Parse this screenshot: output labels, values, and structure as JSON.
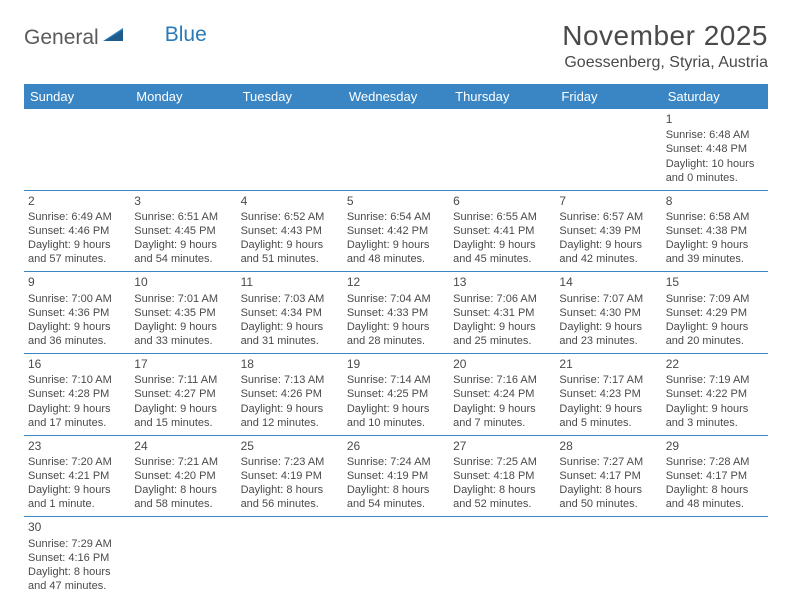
{
  "logo": {
    "text1": "General",
    "text2": "Blue"
  },
  "title": "November 2025",
  "location": "Goessenberg, Styria, Austria",
  "colors": {
    "header_bg": "#3a86c4",
    "border": "#3a86c4",
    "text": "#4a4a4a",
    "logo_blue": "#2a7ab8"
  },
  "day_headers": [
    "Sunday",
    "Monday",
    "Tuesday",
    "Wednesday",
    "Thursday",
    "Friday",
    "Saturday"
  ],
  "weeks": [
    [
      null,
      null,
      null,
      null,
      null,
      null,
      {
        "d": "1",
        "sr": "Sunrise: 6:48 AM",
        "ss": "Sunset: 4:48 PM",
        "dl": "Daylight: 10 hours and 0 minutes."
      }
    ],
    [
      {
        "d": "2",
        "sr": "Sunrise: 6:49 AM",
        "ss": "Sunset: 4:46 PM",
        "dl": "Daylight: 9 hours and 57 minutes."
      },
      {
        "d": "3",
        "sr": "Sunrise: 6:51 AM",
        "ss": "Sunset: 4:45 PM",
        "dl": "Daylight: 9 hours and 54 minutes."
      },
      {
        "d": "4",
        "sr": "Sunrise: 6:52 AM",
        "ss": "Sunset: 4:43 PM",
        "dl": "Daylight: 9 hours and 51 minutes."
      },
      {
        "d": "5",
        "sr": "Sunrise: 6:54 AM",
        "ss": "Sunset: 4:42 PM",
        "dl": "Daylight: 9 hours and 48 minutes."
      },
      {
        "d": "6",
        "sr": "Sunrise: 6:55 AM",
        "ss": "Sunset: 4:41 PM",
        "dl": "Daylight: 9 hours and 45 minutes."
      },
      {
        "d": "7",
        "sr": "Sunrise: 6:57 AM",
        "ss": "Sunset: 4:39 PM",
        "dl": "Daylight: 9 hours and 42 minutes."
      },
      {
        "d": "8",
        "sr": "Sunrise: 6:58 AM",
        "ss": "Sunset: 4:38 PM",
        "dl": "Daylight: 9 hours and 39 minutes."
      }
    ],
    [
      {
        "d": "9",
        "sr": "Sunrise: 7:00 AM",
        "ss": "Sunset: 4:36 PM",
        "dl": "Daylight: 9 hours and 36 minutes."
      },
      {
        "d": "10",
        "sr": "Sunrise: 7:01 AM",
        "ss": "Sunset: 4:35 PM",
        "dl": "Daylight: 9 hours and 33 minutes."
      },
      {
        "d": "11",
        "sr": "Sunrise: 7:03 AM",
        "ss": "Sunset: 4:34 PM",
        "dl": "Daylight: 9 hours and 31 minutes."
      },
      {
        "d": "12",
        "sr": "Sunrise: 7:04 AM",
        "ss": "Sunset: 4:33 PM",
        "dl": "Daylight: 9 hours and 28 minutes."
      },
      {
        "d": "13",
        "sr": "Sunrise: 7:06 AM",
        "ss": "Sunset: 4:31 PM",
        "dl": "Daylight: 9 hours and 25 minutes."
      },
      {
        "d": "14",
        "sr": "Sunrise: 7:07 AM",
        "ss": "Sunset: 4:30 PM",
        "dl": "Daylight: 9 hours and 23 minutes."
      },
      {
        "d": "15",
        "sr": "Sunrise: 7:09 AM",
        "ss": "Sunset: 4:29 PM",
        "dl": "Daylight: 9 hours and 20 minutes."
      }
    ],
    [
      {
        "d": "16",
        "sr": "Sunrise: 7:10 AM",
        "ss": "Sunset: 4:28 PM",
        "dl": "Daylight: 9 hours and 17 minutes."
      },
      {
        "d": "17",
        "sr": "Sunrise: 7:11 AM",
        "ss": "Sunset: 4:27 PM",
        "dl": "Daylight: 9 hours and 15 minutes."
      },
      {
        "d": "18",
        "sr": "Sunrise: 7:13 AM",
        "ss": "Sunset: 4:26 PM",
        "dl": "Daylight: 9 hours and 12 minutes."
      },
      {
        "d": "19",
        "sr": "Sunrise: 7:14 AM",
        "ss": "Sunset: 4:25 PM",
        "dl": "Daylight: 9 hours and 10 minutes."
      },
      {
        "d": "20",
        "sr": "Sunrise: 7:16 AM",
        "ss": "Sunset: 4:24 PM",
        "dl": "Daylight: 9 hours and 7 minutes."
      },
      {
        "d": "21",
        "sr": "Sunrise: 7:17 AM",
        "ss": "Sunset: 4:23 PM",
        "dl": "Daylight: 9 hours and 5 minutes."
      },
      {
        "d": "22",
        "sr": "Sunrise: 7:19 AM",
        "ss": "Sunset: 4:22 PM",
        "dl": "Daylight: 9 hours and 3 minutes."
      }
    ],
    [
      {
        "d": "23",
        "sr": "Sunrise: 7:20 AM",
        "ss": "Sunset: 4:21 PM",
        "dl": "Daylight: 9 hours and 1 minute."
      },
      {
        "d": "24",
        "sr": "Sunrise: 7:21 AM",
        "ss": "Sunset: 4:20 PM",
        "dl": "Daylight: 8 hours and 58 minutes."
      },
      {
        "d": "25",
        "sr": "Sunrise: 7:23 AM",
        "ss": "Sunset: 4:19 PM",
        "dl": "Daylight: 8 hours and 56 minutes."
      },
      {
        "d": "26",
        "sr": "Sunrise: 7:24 AM",
        "ss": "Sunset: 4:19 PM",
        "dl": "Daylight: 8 hours and 54 minutes."
      },
      {
        "d": "27",
        "sr": "Sunrise: 7:25 AM",
        "ss": "Sunset: 4:18 PM",
        "dl": "Daylight: 8 hours and 52 minutes."
      },
      {
        "d": "28",
        "sr": "Sunrise: 7:27 AM",
        "ss": "Sunset: 4:17 PM",
        "dl": "Daylight: 8 hours and 50 minutes."
      },
      {
        "d": "29",
        "sr": "Sunrise: 7:28 AM",
        "ss": "Sunset: 4:17 PM",
        "dl": "Daylight: 8 hours and 48 minutes."
      }
    ],
    [
      {
        "d": "30",
        "sr": "Sunrise: 7:29 AM",
        "ss": "Sunset: 4:16 PM",
        "dl": "Daylight: 8 hours and 47 minutes."
      },
      null,
      null,
      null,
      null,
      null,
      null
    ]
  ]
}
